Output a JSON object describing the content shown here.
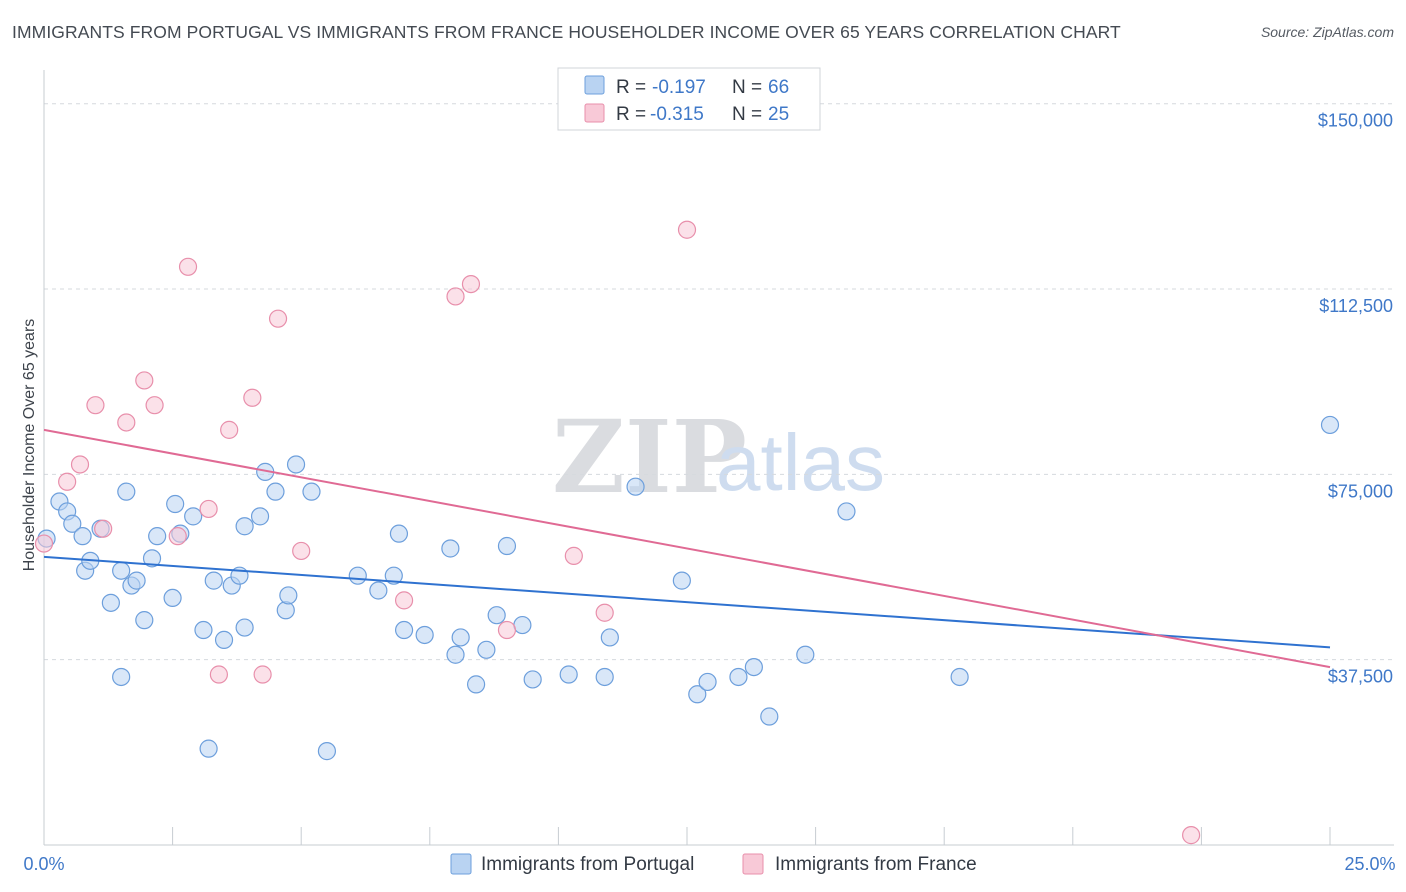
{
  "header": {
    "title": "IMMIGRANTS FROM PORTUGAL VS IMMIGRANTS FROM FRANCE HOUSEHOLDER INCOME OVER 65 YEARS CORRELATION CHART",
    "source": "Source: ZipAtlas.com"
  },
  "watermark": {
    "zip": "ZIP",
    "atlas": "atlas"
  },
  "colors": {
    "portugal_fill": "#b9d3f2",
    "portugal_stroke": "#6d9fdc",
    "portugal_line": "#2f72d0",
    "france_fill": "#f8c9d7",
    "france_stroke": "#e88fab",
    "france_line": "#e06a94",
    "grid": "#d5d9de",
    "tick_label": "#3f78c8"
  },
  "legend": {
    "r_label": "R =",
    "n_label": "N =",
    "rows": [
      {
        "r": "-0.197",
        "n": "66"
      },
      {
        "r": "-0.315",
        "n": "25"
      }
    ]
  },
  "chart_data": {
    "type": "scatter",
    "title": "IMMIGRANTS FROM PORTUGAL VS IMMIGRANTS FROM FRANCE HOUSEHOLDER INCOME OVER 65 YEARS CORRELATION CHART",
    "xlabel": "",
    "ylabel": "Householder Income Over 65 years",
    "xlim": [
      0,
      25
    ],
    "ylim": [
      0,
      155000
    ],
    "x_tick_labels": [
      "0.0%",
      "25.0%"
    ],
    "y_ticks": [
      37500,
      75000,
      112500,
      150000
    ],
    "y_tick_labels": [
      "$37,500",
      "$75,000",
      "$112,500",
      "$150,000"
    ],
    "grid": true,
    "legend_position": "top-center",
    "series": [
      {
        "name": "Immigrants from Portugal",
        "color": "#6d9fdc",
        "trend": {
          "x": [
            0,
            25
          ],
          "y": [
            58300,
            40000
          ]
        },
        "points": [
          [
            0.05,
            62000
          ],
          [
            0.3,
            69500
          ],
          [
            0.45,
            67500
          ],
          [
            0.55,
            65000
          ],
          [
            0.75,
            62500
          ],
          [
            0.8,
            55500
          ],
          [
            0.9,
            57500
          ],
          [
            1.1,
            64000
          ],
          [
            1.3,
            49000
          ],
          [
            1.5,
            55500
          ],
          [
            1.6,
            71500
          ],
          [
            1.7,
            52500
          ],
          [
            1.8,
            53500
          ],
          [
            1.95,
            45500
          ],
          [
            2.1,
            58000
          ],
          [
            2.2,
            62500
          ],
          [
            2.5,
            50000
          ],
          [
            2.55,
            69000
          ],
          [
            2.65,
            63000
          ],
          [
            2.9,
            66500
          ],
          [
            3.1,
            43500
          ],
          [
            3.3,
            53500
          ],
          [
            3.5,
            41500
          ],
          [
            3.65,
            52500
          ],
          [
            3.8,
            54500
          ],
          [
            3.9,
            44000
          ],
          [
            3.9,
            64500
          ],
          [
            4.2,
            66500
          ],
          [
            4.3,
            75500
          ],
          [
            4.5,
            71500
          ],
          [
            4.7,
            47500
          ],
          [
            4.75,
            50500
          ],
          [
            4.9,
            77000
          ],
          [
            5.2,
            71500
          ],
          [
            1.5,
            34000
          ],
          [
            3.2,
            19500
          ],
          [
            5.5,
            19000
          ],
          [
            6.1,
            54500
          ],
          [
            6.5,
            51500
          ],
          [
            6.8,
            54500
          ],
          [
            6.9,
            63000
          ],
          [
            7.0,
            43500
          ],
          [
            7.4,
            42500
          ],
          [
            7.9,
            60000
          ],
          [
            8.0,
            38500
          ],
          [
            8.1,
            42000
          ],
          [
            8.4,
            32500
          ],
          [
            8.6,
            39500
          ],
          [
            8.8,
            46500
          ],
          [
            9.0,
            60500
          ],
          [
            9.3,
            44500
          ],
          [
            9.5,
            33500
          ],
          [
            10.2,
            34500
          ],
          [
            10.9,
            34000
          ],
          [
            11.0,
            42000
          ],
          [
            11.5,
            72500
          ],
          [
            12.4,
            53500
          ],
          [
            12.7,
            30500
          ],
          [
            12.9,
            33000
          ],
          [
            13.5,
            34000
          ],
          [
            13.8,
            36000
          ],
          [
            14.1,
            26000
          ],
          [
            14.8,
            38500
          ],
          [
            15.6,
            67500
          ],
          [
            17.8,
            34000
          ],
          [
            25.0,
            85000
          ]
        ]
      },
      {
        "name": "Immigrants from France",
        "color": "#e88fab",
        "trend": {
          "x": [
            0,
            25
          ],
          "y": [
            84000,
            36000
          ]
        },
        "points": [
          [
            0.0,
            61000
          ],
          [
            0.45,
            73500
          ],
          [
            0.7,
            77000
          ],
          [
            1.0,
            89000
          ],
          [
            1.15,
            64000
          ],
          [
            1.6,
            85500
          ],
          [
            1.95,
            94000
          ],
          [
            2.15,
            89000
          ],
          [
            2.6,
            62500
          ],
          [
            2.8,
            117000
          ],
          [
            3.2,
            68000
          ],
          [
            3.4,
            34500
          ],
          [
            3.6,
            84000
          ],
          [
            4.05,
            90500
          ],
          [
            4.25,
            34500
          ],
          [
            4.55,
            106500
          ],
          [
            5.0,
            59500
          ],
          [
            7.0,
            49500
          ],
          [
            8.0,
            111000
          ],
          [
            8.3,
            113500
          ],
          [
            9.0,
            43500
          ],
          [
            10.3,
            58500
          ],
          [
            10.9,
            47000
          ],
          [
            12.5,
            124500
          ],
          [
            22.3,
            2000
          ]
        ]
      }
    ]
  },
  "bottom_legend": {
    "items": [
      "Immigrants from Portugal",
      "Immigrants from France"
    ]
  }
}
